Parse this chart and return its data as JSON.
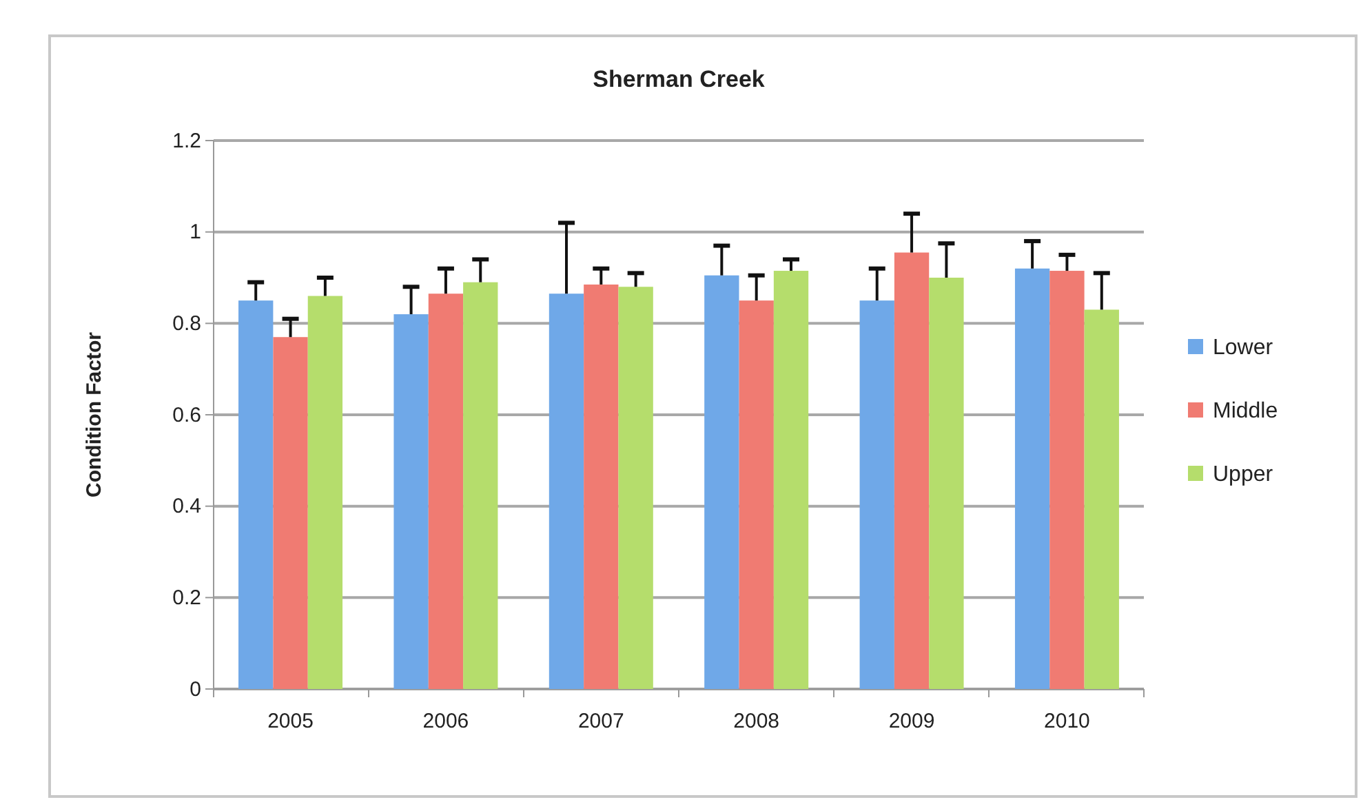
{
  "chart_data": {
    "type": "bar",
    "title": "Sherman Creek",
    "ylabel": "Condition Factor",
    "categories": [
      "2005",
      "2006",
      "2007",
      "2008",
      "2009",
      "2010"
    ],
    "series": [
      {
        "name": "Lower",
        "color": "#6fa8e8",
        "values": [
          0.85,
          0.82,
          0.865,
          0.905,
          0.85,
          0.92
        ],
        "errors": [
          [
            0.85,
            0.89
          ],
          [
            0.82,
            0.88
          ],
          [
            0.865,
            1.02
          ],
          [
            0.905,
            0.97
          ],
          [
            0.85,
            0.92
          ],
          [
            0.92,
            0.98
          ]
        ]
      },
      {
        "name": "Middle",
        "color": "#f07b72",
        "values": [
          0.77,
          0.865,
          0.885,
          0.85,
          0.955,
          0.915
        ],
        "errors": [
          [
            0.77,
            0.81
          ],
          [
            0.865,
            0.92
          ],
          [
            0.885,
            0.92
          ],
          [
            0.85,
            0.905
          ],
          [
            0.955,
            1.04
          ],
          [
            0.915,
            0.95
          ]
        ]
      },
      {
        "name": "Upper",
        "color": "#b5dd6c",
        "values": [
          0.86,
          0.89,
          0.88,
          0.915,
          0.9,
          0.83
        ],
        "errors": [
          [
            0.86,
            0.9
          ],
          [
            0.89,
            0.94
          ],
          [
            0.88,
            0.91
          ],
          [
            0.915,
            0.94
          ],
          [
            0.9,
            0.975
          ],
          [
            0.83,
            0.91
          ]
        ]
      }
    ],
    "ylim": [
      0,
      1.2
    ],
    "yticks": [
      0,
      {
        "value": 0.2,
        "label": "0.2"
      },
      {
        "value": 0.4,
        "label": "0.4"
      },
      {
        "value": 0.6,
        "label": "0.6"
      },
      {
        "value": 0.8,
        "label": "0.8"
      },
      1,
      {
        "value": 1.2,
        "label": "1.2"
      }
    ],
    "grid": "y",
    "legend": "right"
  }
}
